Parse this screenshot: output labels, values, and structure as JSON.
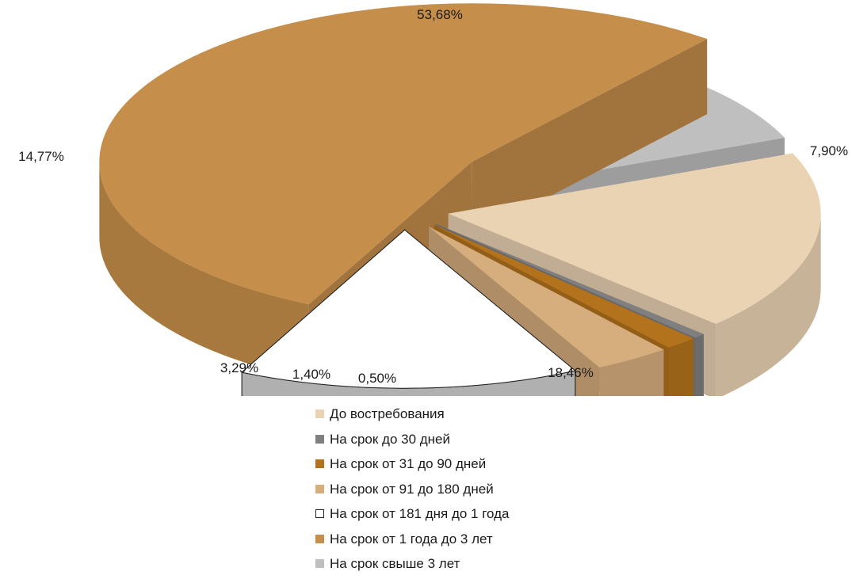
{
  "chart_data": {
    "type": "pie",
    "title": "",
    "categories": [
      "До востребования",
      "На срок до 30 дней",
      "На срок от 31 до 90 дней",
      "На срок от 91 до 180 дней",
      "На срок от 181 дня до 1 года",
      "На срок от 1 года до 3 лет",
      "На срок свыше 3 лет"
    ],
    "values": [
      18.46,
      0.5,
      1.4,
      3.29,
      14.77,
      53.68,
      7.9
    ],
    "labels": [
      "18,46%",
      "0,50%",
      "1,40%",
      "3,29%",
      "14,77%",
      "53,68%",
      "7,90%"
    ],
    "colors": [
      "#ead3b3",
      "#7f7f7f",
      "#b3731c",
      "#d6ad7d",
      "#ffffff",
      "#c58e4a",
      "#bfbfbf"
    ],
    "legend_position": "bottom",
    "style": "3d-exploded"
  }
}
